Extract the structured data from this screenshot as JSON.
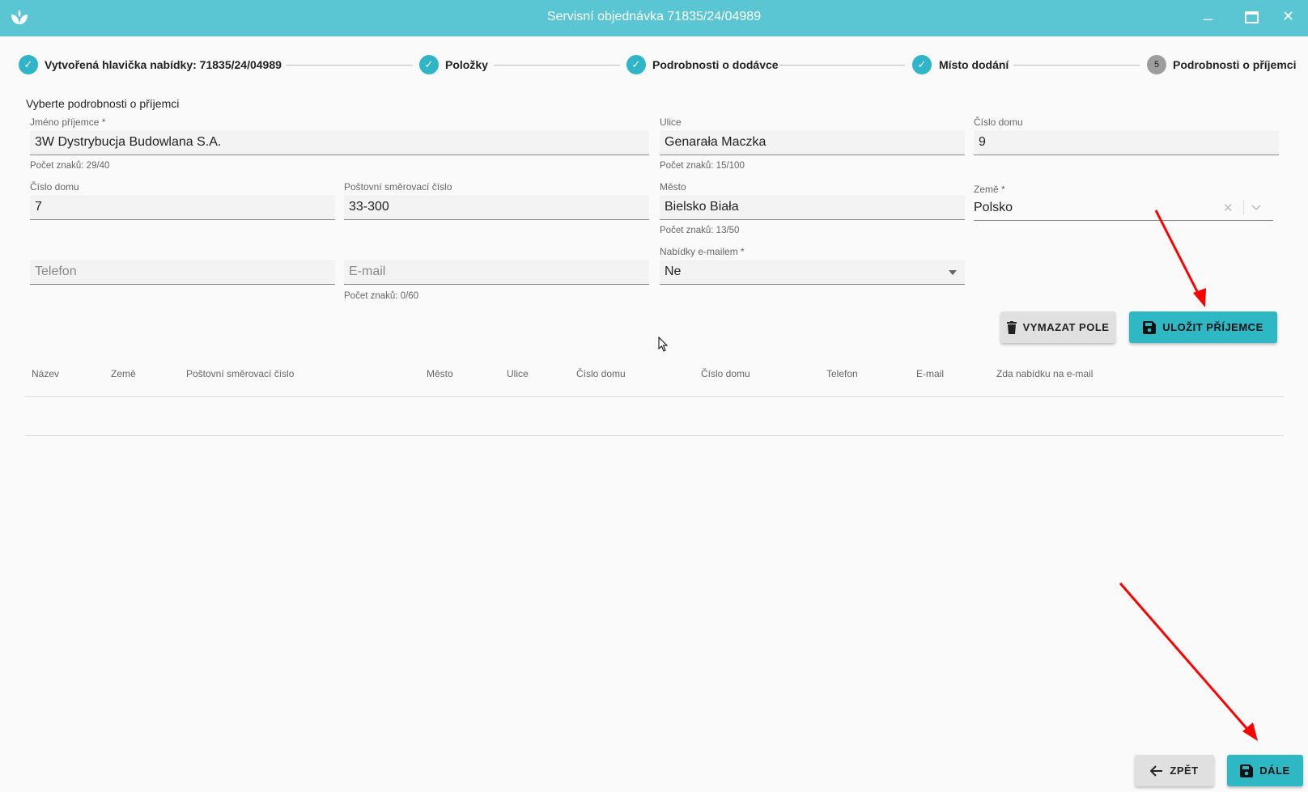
{
  "window": {
    "title": "Servisní objednávka 71835/24/04989",
    "minimize": "_",
    "maximize": "☐",
    "close": "✕"
  },
  "stepper": [
    {
      "label": "Vytvořená hlavička nabídky: 71835/24/04989",
      "state": "done"
    },
    {
      "label": "Položky",
      "state": "done"
    },
    {
      "label": "Podrobnosti o dodávce",
      "state": "done"
    },
    {
      "label": "Místo dodání",
      "state": "done"
    },
    {
      "label": "Podrobnosti o příjemci",
      "state": "current",
      "number": "5"
    }
  ],
  "form": {
    "heading": "Vyberte podrobnosti o příjemci",
    "recipient_name": {
      "label": "Jméno příjemce *",
      "value": "3W Dystrybucja Budowlana S.A.",
      "helper": "Počet znaků: 29/40"
    },
    "street": {
      "label": "Ulice",
      "value": "Genarała Maczka",
      "helper": "Počet znaků: 15/100"
    },
    "house_number_1": {
      "label": "Číslo domu",
      "value": "9"
    },
    "house_number_2": {
      "label": "Číslo domu",
      "value": "7"
    },
    "postal_code": {
      "label": "Poštovní směrovací číslo",
      "value": "33-300"
    },
    "city": {
      "label": "Město",
      "value": "Bielsko Biała",
      "helper": "Počet znaků: 13/50"
    },
    "country": {
      "label": "Země *",
      "value": "Polsko"
    },
    "phone": {
      "placeholder": "Telefon",
      "value": ""
    },
    "email": {
      "placeholder": "E-mail",
      "value": "",
      "helper": "Počet znaků: 0/60"
    },
    "email_offers": {
      "label": "Nabídky e-mailem *",
      "value": "Ne"
    },
    "clear_button": "VYMAZAT POLE",
    "save_button": "ULOŽIT PŘÍJEMCE"
  },
  "table": {
    "columns": [
      "Název",
      "Země",
      "Poštovní směrovací číslo",
      "Město",
      "Ulice",
      "Číslo domu",
      "Číslo domu",
      "Telefon",
      "E-mail",
      "Zda nabídku na e-mail"
    ],
    "rows": []
  },
  "footer": {
    "back": "ZPĚT",
    "next": "DÁLE"
  },
  "colors": {
    "header": "#5bc6d3",
    "accent": "#2eb8c4",
    "annotation_arrow": "#ff0000"
  }
}
